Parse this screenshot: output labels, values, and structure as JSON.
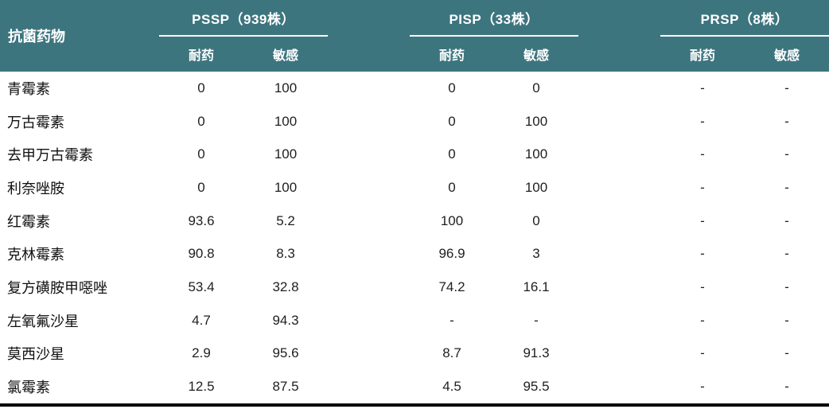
{
  "colors": {
    "header_bg": "#3d757f",
    "header_text": "#ffffff",
    "body_text": "#1f1f1f",
    "bottom_rule": "#000000"
  },
  "table": {
    "row_header": "抗菌药物",
    "groups": [
      {
        "label": "PSSP（939株）",
        "sub": [
          "耐药",
          "敏感"
        ]
      },
      {
        "label": "PISP（33株）",
        "sub": [
          "耐药",
          "敏感"
        ]
      },
      {
        "label": "PRSP（8株）",
        "sub": [
          "耐药",
          "敏感"
        ]
      }
    ],
    "rows": [
      {
        "drug": "青霉素",
        "values": [
          "0",
          "100",
          "0",
          "0",
          "-",
          "-"
        ]
      },
      {
        "drug": "万古霉素",
        "values": [
          "0",
          "100",
          "0",
          "100",
          "-",
          "-"
        ]
      },
      {
        "drug": "去甲万古霉素",
        "values": [
          "0",
          "100",
          "0",
          "100",
          "-",
          "-"
        ]
      },
      {
        "drug": "利奈唑胺",
        "values": [
          "0",
          "100",
          "0",
          "100",
          "-",
          "-"
        ]
      },
      {
        "drug": "红霉素",
        "values": [
          "93.6",
          "5.2",
          "100",
          "0",
          "-",
          "-"
        ]
      },
      {
        "drug": "克林霉素",
        "values": [
          "90.8",
          "8.3",
          "96.9",
          "3",
          "-",
          "-"
        ]
      },
      {
        "drug": "复方磺胺甲噁唑",
        "values": [
          "53.4",
          "32.8",
          "74.2",
          "16.1",
          "-",
          "-"
        ]
      },
      {
        "drug": "左氧氟沙星",
        "values": [
          "4.7",
          "94.3",
          "-",
          "-",
          "-",
          "-"
        ]
      },
      {
        "drug": "莫西沙星",
        "values": [
          "2.9",
          "95.6",
          "8.7",
          "91.3",
          "-",
          "-"
        ]
      },
      {
        "drug": "氯霉素",
        "values": [
          "12.5",
          "87.5",
          "4.5",
          "95.5",
          "-",
          "-"
        ]
      }
    ]
  }
}
